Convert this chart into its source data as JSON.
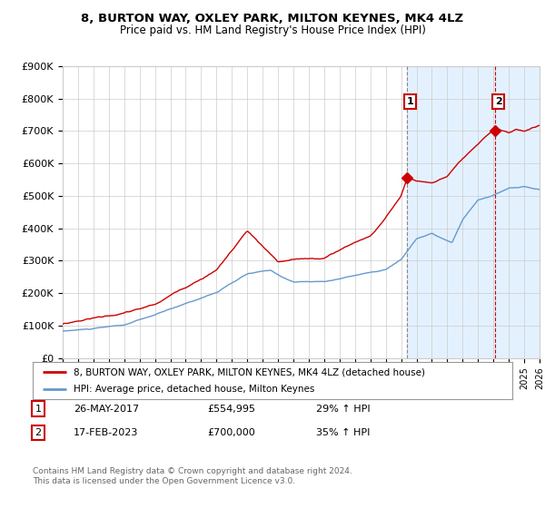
{
  "title": "8, BURTON WAY, OXLEY PARK, MILTON KEYNES, MK4 4LZ",
  "subtitle": "Price paid vs. HM Land Registry's House Price Index (HPI)",
  "legend_line1": "8, BURTON WAY, OXLEY PARK, MILTON KEYNES, MK4 4LZ (detached house)",
  "legend_line2": "HPI: Average price, detached house, Milton Keynes",
  "annotation1_date": "26-MAY-2017",
  "annotation1_price": "£554,995",
  "annotation1_hpi": "29% ↑ HPI",
  "annotation2_date": "17-FEB-2023",
  "annotation2_price": "£700,000",
  "annotation2_hpi": "35% ↑ HPI",
  "footer": "Contains HM Land Registry data © Crown copyright and database right 2024.\nThis data is licensed under the Open Government Licence v3.0.",
  "red_color": "#cc0000",
  "blue_color": "#6699cc",
  "blue_fill": "#ddeeff",
  "background_color": "#ffffff",
  "grid_color": "#cccccc",
  "ylim": [
    0,
    900000
  ],
  "yticks": [
    0,
    100000,
    200000,
    300000,
    400000,
    500000,
    600000,
    700000,
    800000,
    900000
  ],
  "ytick_labels": [
    "£0",
    "£100K",
    "£200K",
    "£300K",
    "£400K",
    "£500K",
    "£600K",
    "£700K",
    "£800K",
    "£900K"
  ],
  "sale1_x": 2017.39,
  "sale1_y": 554995,
  "sale2_x": 2023.12,
  "sale2_y": 700000,
  "vline1_x": 2017.39,
  "vline2_x": 2023.12,
  "shade_start": 2017.39,
  "shade_end": 2026.0,
  "xmin": 1995,
  "xmax": 2026.0
}
